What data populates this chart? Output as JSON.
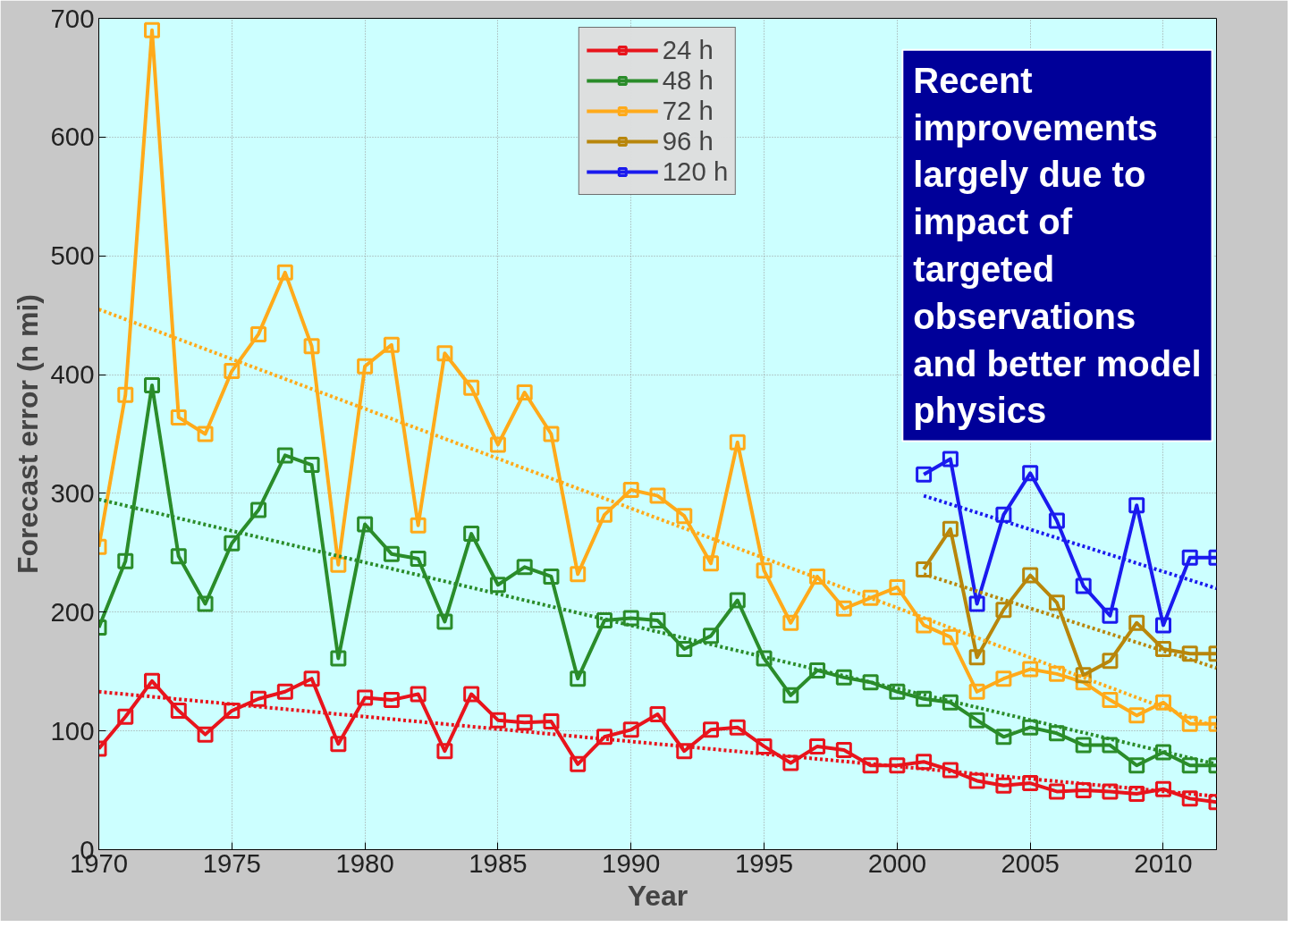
{
  "chart_data": {
    "type": "line",
    "xlabel": "Year",
    "ylabel": "Forecast error (n mi)",
    "xlim": [
      1970,
      2012
    ],
    "xticks": [
      1970,
      1975,
      1980,
      1985,
      1990,
      1995,
      2000,
      2005,
      2010
    ],
    "ylim": [
      0,
      700
    ],
    "yticks": [
      0,
      100,
      200,
      300,
      400,
      500,
      600,
      700
    ],
    "grid": true,
    "legend": "top",
    "marker": "square",
    "line_style": "solid",
    "annotations": [
      "Recent\nimprovements\nlargely due to\nimpact of\ntargeted\nobservations\nand better model\nphysics"
    ],
    "x": [
      1970,
      1971,
      1972,
      1973,
      1974,
      1975,
      1976,
      1977,
      1978,
      1979,
      1980,
      1981,
      1982,
      1983,
      1984,
      1985,
      1986,
      1987,
      1988,
      1989,
      1990,
      1991,
      1992,
      1993,
      1994,
      1995,
      1996,
      1997,
      1998,
      1999,
      2000,
      2001,
      2002,
      2003,
      2004,
      2005,
      2006,
      2007,
      2008,
      2009,
      2010,
      2011,
      2012
    ],
    "series": [
      {
        "name": "24 h",
        "color": "#e8141c",
        "values": [
          85,
          112,
          142,
          117,
          97,
          117,
          127,
          133,
          144,
          89,
          128,
          126,
          131,
          83,
          131,
          109,
          107,
          108,
          72,
          95,
          101,
          114,
          83,
          101,
          103,
          87,
          73,
          87,
          84,
          71,
          71,
          74,
          67,
          58,
          54,
          56,
          49,
          50,
          49,
          47,
          51,
          43,
          40
        ]
      },
      {
        "name": "48 h",
        "color": "#2a8c2a",
        "values": [
          187,
          243,
          391,
          247,
          207,
          258,
          286,
          332,
          324,
          161,
          274,
          249,
          245,
          192,
          266,
          223,
          238,
          230,
          144,
          193,
          195,
          193,
          169,
          180,
          210,
          161,
          130,
          151,
          145,
          141,
          133,
          127,
          124,
          109,
          95,
          103,
          98,
          88,
          88,
          71,
          82,
          71,
          71
        ]
      },
      {
        "name": "72 h",
        "color": "#ffaa1a",
        "values": [
          255,
          383,
          690,
          364,
          350,
          403,
          434,
          486,
          424,
          240,
          407,
          425,
          273,
          418,
          389,
          341,
          385,
          350,
          232,
          282,
          303,
          298,
          281,
          241,
          343,
          235,
          191,
          230,
          203,
          212,
          221,
          189,
          179,
          133,
          144,
          152,
          148,
          141,
          126,
          113,
          124,
          106,
          106
        ]
      },
      {
        "name": "96 h",
        "color": "#b8860b",
        "x": [
          2001,
          2002,
          2003,
          2004,
          2005,
          2006,
          2007,
          2008,
          2009,
          2010,
          2011,
          2012
        ],
        "values": [
          236,
          270,
          162,
          202,
          231,
          208,
          147,
          159,
          191,
          169,
          165,
          165
        ]
      },
      {
        "name": "120 h",
        "color": "#1a1aee",
        "x": [
          2001,
          2002,
          2003,
          2004,
          2005,
          2006,
          2007,
          2008,
          2009,
          2010,
          2011,
          2012
        ],
        "values": [
          316,
          329,
          207,
          282,
          317,
          277,
          222,
          197,
          290,
          189,
          246,
          246
        ]
      },
      {
        "color": "#e8141c",
        "x": [
          1970,
          2012
        ],
        "values": [
          133,
          45
        ],
        "marker": "none",
        "line_style": "dotted"
      },
      {
        "color": "#2a8c2a",
        "x": [
          1970,
          2012
        ],
        "values": [
          295,
          72
        ],
        "marker": "none",
        "line_style": "dotted"
      },
      {
        "color": "#ffaa1a",
        "x": [
          1970,
          2012
        ],
        "values": [
          455,
          103
        ],
        "marker": "none",
        "line_style": "dotted"
      },
      {
        "color": "#b8860b",
        "x": [
          2001,
          2012
        ],
        "values": [
          232,
          153
        ],
        "marker": "none",
        "line_style": "dotted"
      },
      {
        "color": "#1a1aee",
        "x": [
          2001,
          2012
        ],
        "values": [
          298,
          220
        ],
        "marker": "none",
        "line_style": "dotted"
      }
    ]
  }
}
